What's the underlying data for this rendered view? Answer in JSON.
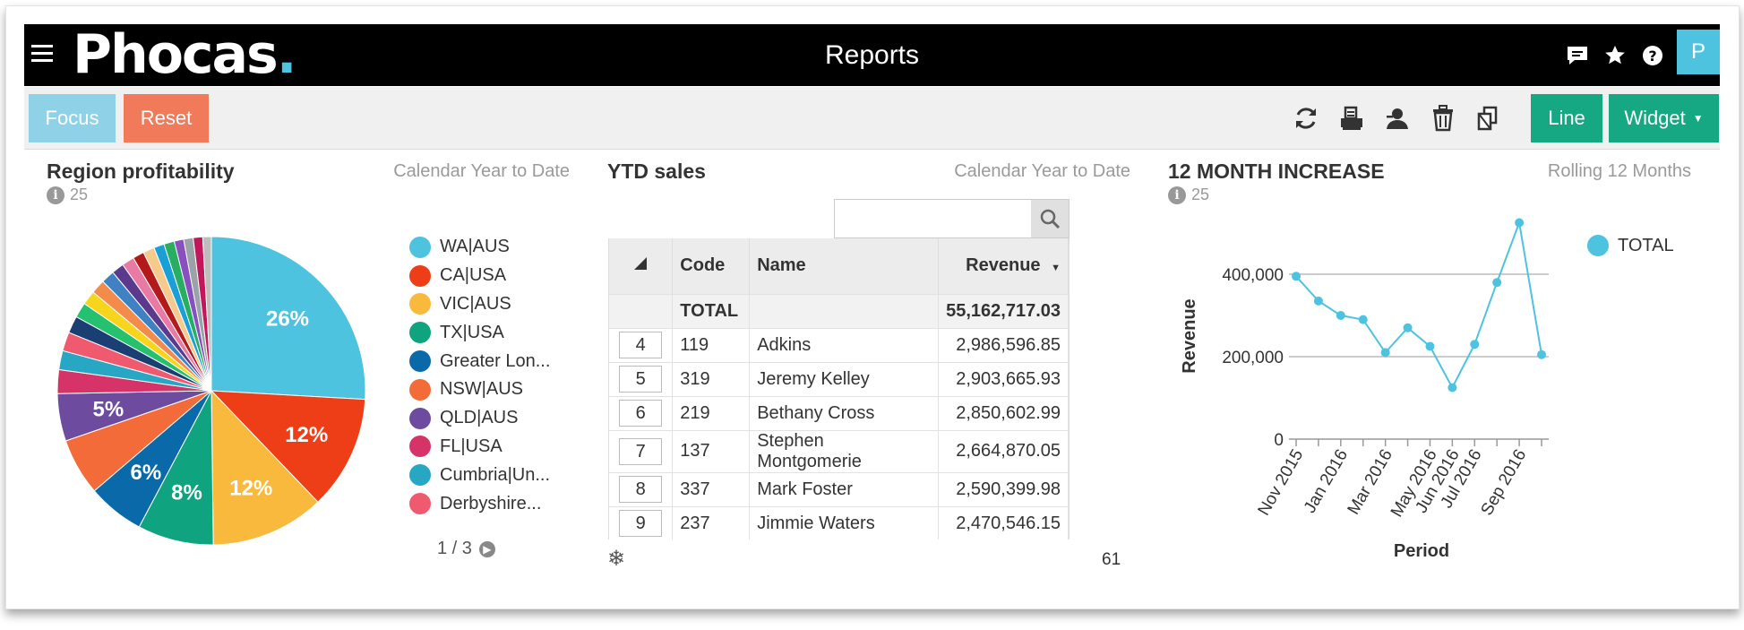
{
  "app": {
    "logo_text": "Phocas",
    "logo_dot": ".",
    "title": "Reports",
    "avatar_initial": "P",
    "top_icons": [
      "chat-icon",
      "star-icon",
      "help-icon"
    ]
  },
  "toolbar": {
    "focus_label": "Focus",
    "reset_label": "Reset",
    "tool_icons": [
      "refresh-icon",
      "print-icon",
      "share-user-icon",
      "trash-icon",
      "copy-icon"
    ],
    "line_label": "Line",
    "widget_label": "Widget"
  },
  "region_panel": {
    "title": "Region profitability",
    "period": "Calendar Year to Date",
    "info_count": "25",
    "legend": [
      {
        "label": "WA|AUS",
        "color": "#4ec3e0"
      },
      {
        "label": "CA|USA",
        "color": "#ee3e17"
      },
      {
        "label": "VIC|AUS",
        "color": "#f8b93c"
      },
      {
        "label": "TX|USA",
        "color": "#10a37f"
      },
      {
        "label": "Greater Lon...",
        "color": "#0a69a9"
      },
      {
        "label": "NSW|AUS",
        "color": "#f26b38"
      },
      {
        "label": "QLD|AUS",
        "color": "#6d4c9f"
      },
      {
        "label": "FL|USA",
        "color": "#d63368"
      },
      {
        "label": "Cumbria|Un...",
        "color": "#27a7c4"
      },
      {
        "label": "Derbyshire...",
        "color": "#ef5a6f"
      }
    ],
    "pager": "1 / 3",
    "chart_data": {
      "type": "pie",
      "slices": [
        {
          "label": "WA|AUS",
          "value": 26,
          "color": "#4ec3e0",
          "display": "26%"
        },
        {
          "label": "CA|USA",
          "value": 12,
          "color": "#ee3e17",
          "display": "12%"
        },
        {
          "label": "VIC|AUS",
          "value": 12,
          "color": "#f8b93c",
          "display": "12%"
        },
        {
          "label": "TX|USA",
          "value": 8,
          "color": "#10a37f",
          "display": "8%"
        },
        {
          "label": "Greater Lon...",
          "value": 6,
          "color": "#0a69a9",
          "display": "6%"
        },
        {
          "label": "NSW|AUS",
          "value": 6,
          "color": "#f26b38",
          "display": ""
        },
        {
          "label": "QLD|AUS",
          "value": 5,
          "color": "#6d4c9f",
          "display": "5%"
        },
        {
          "label": "FL|USA",
          "value": 2.5,
          "color": "#d63368",
          "display": ""
        },
        {
          "label": "Cumbria|Un...",
          "value": 2,
          "color": "#27a7c4",
          "display": ""
        },
        {
          "label": "Derbyshire...",
          "value": 2,
          "color": "#ef5a6f",
          "display": ""
        },
        {
          "label": "",
          "value": 1.8,
          "color": "#1c3f73",
          "display": ""
        },
        {
          "label": "",
          "value": 1.6,
          "color": "#25c16f",
          "display": ""
        },
        {
          "label": "",
          "value": 1.5,
          "color": "#f7d51d",
          "display": ""
        },
        {
          "label": "",
          "value": 1.5,
          "color": "#f38b4a",
          "display": ""
        },
        {
          "label": "",
          "value": 1.4,
          "color": "#3e82c4",
          "display": ""
        },
        {
          "label": "",
          "value": 1.3,
          "color": "#5b3a8e",
          "display": ""
        },
        {
          "label": "",
          "value": 1.3,
          "color": "#e87aa3",
          "display": ""
        },
        {
          "label": "",
          "value": 1.2,
          "color": "#b31b1b",
          "display": ""
        },
        {
          "label": "",
          "value": 1.2,
          "color": "#f6c98d",
          "display": ""
        },
        {
          "label": "",
          "value": 1.1,
          "color": "#1aa0d6",
          "display": ""
        },
        {
          "label": "",
          "value": 1.1,
          "color": "#27ae60",
          "display": ""
        },
        {
          "label": "",
          "value": 1.0,
          "color": "#8a4fbf",
          "display": ""
        },
        {
          "label": "",
          "value": 1.0,
          "color": "#9aa3a8",
          "display": ""
        },
        {
          "label": "",
          "value": 1.0,
          "color": "#c2185b",
          "display": ""
        },
        {
          "label": "",
          "value": 0.9,
          "color": "#bdbdbd",
          "display": ""
        }
      ]
    }
  },
  "ytd_panel": {
    "title": "YTD sales",
    "period": "Calendar Year to Date",
    "search_placeholder": "",
    "columns": {
      "code": "Code",
      "name": "Name",
      "revenue": "Revenue"
    },
    "total_label": "TOTAL",
    "total_value": "55,162,717.03",
    "rows": [
      {
        "rank": "4",
        "code": "119",
        "name": "Adkins",
        "revenue": "2,986,596.85"
      },
      {
        "rank": "5",
        "code": "319",
        "name": "Jeremy Kelley",
        "revenue": "2,903,665.93"
      },
      {
        "rank": "6",
        "code": "219",
        "name": "Bethany Cross",
        "revenue": "2,850,602.99"
      },
      {
        "rank": "7",
        "code": "137",
        "name": "Stephen Montgomerie",
        "revenue": "2,664,870.05"
      },
      {
        "rank": "8",
        "code": "337",
        "name": "Mark Foster",
        "revenue": "2,590,399.98"
      },
      {
        "rank": "9",
        "code": "237",
        "name": "Jimmie Waters",
        "revenue": "2,470,546.15"
      }
    ],
    "footer_count": "61"
  },
  "increase_panel": {
    "title": "12 MONTH INCREASE",
    "period": "Rolling 12 Months",
    "info_count": "25",
    "legend_label": "TOTAL",
    "chart_data": {
      "type": "line",
      "xlabel": "Period",
      "ylabel": "Revenue",
      "ylim": [
        0,
        500000
      ],
      "yticks": [
        0,
        200000,
        400000
      ],
      "ytick_labels": [
        "0",
        "200,000",
        "400,000"
      ],
      "x_tick_labels": [
        "Nov 2015",
        "Jan 2016",
        "Mar 2016",
        "May 2016",
        "Jun 2016",
        "Jul 2016",
        "Sep 2016"
      ],
      "color": "#4ec3e0",
      "series": [
        {
          "name": "TOTAL",
          "values": [
            395000,
            335000,
            300000,
            290000,
            210000,
            270000,
            225000,
            125000,
            230000,
            380000,
            525000,
            205000
          ]
        }
      ]
    }
  }
}
